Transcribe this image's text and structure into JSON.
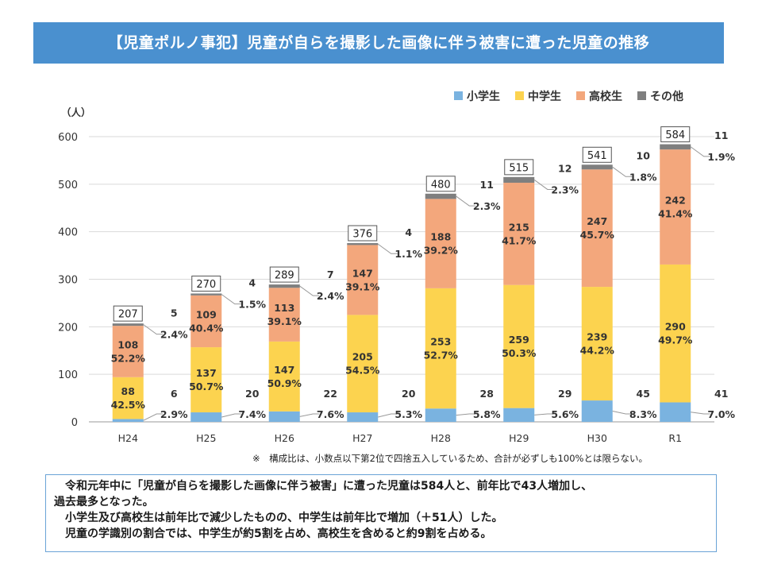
{
  "title": "【児童ポルノ事犯】児童が自らを撮影した画像に伴う被害に遭った児童の推移",
  "chart_data": {
    "type": "bar",
    "stacked": true,
    "unit_label": "（人）",
    "ylim": [
      0,
      600
    ],
    "yticks": [
      0,
      100,
      200,
      300,
      400,
      500,
      600
    ],
    "categories": [
      "H24",
      "H25",
      "H26",
      "H27",
      "H28",
      "H29",
      "H30",
      "R1"
    ],
    "totals": [
      207,
      270,
      289,
      376,
      480,
      515,
      541,
      584
    ],
    "legend_position": "top-right",
    "series": [
      {
        "name": "小学生",
        "color": "#7ab3e0",
        "values": [
          6,
          20,
          22,
          20,
          28,
          29,
          45,
          41
        ],
        "labels": [
          "6",
          "20",
          "22",
          "20",
          "28",
          "29",
          "45",
          "41"
        ],
        "pct": [
          "2.9%",
          "7.4%",
          "7.6%",
          "5.3%",
          "5.8%",
          "5.6%",
          "8.3%",
          "7.0%"
        ]
      },
      {
        "name": "中学生",
        "color": "#fcd34f",
        "values": [
          88,
          137,
          147,
          205,
          253,
          259,
          239,
          290
        ],
        "labels": [
          "88",
          "137",
          "147",
          "205",
          "253",
          "259",
          "239",
          "290"
        ],
        "pct": [
          "42.5%",
          "50.7%",
          "50.9%",
          "54.5%",
          "52.7%",
          "50.3%",
          "44.2%",
          "49.7%"
        ]
      },
      {
        "name": "高校生",
        "color": "#f3a77c",
        "values": [
          108,
          109,
          113,
          147,
          188,
          215,
          247,
          242
        ],
        "labels": [
          "108",
          "109",
          "113",
          "147",
          "188",
          "215",
          "247",
          "242"
        ],
        "pct": [
          "52.2%",
          "40.4%",
          "39.1%",
          "39.1%",
          "39.2%",
          "41.7%",
          "45.7%",
          "41.4%"
        ]
      },
      {
        "name": "その他",
        "color": "#7f7f7f",
        "values": [
          5,
          4,
          7,
          4,
          11,
          12,
          10,
          11
        ],
        "labels": [
          "5",
          "4",
          "7",
          "4",
          "11",
          "12",
          "10",
          "11"
        ],
        "pct": [
          "2.4%",
          "1.5%",
          "2.4%",
          "1.1%",
          "2.3%",
          "2.3%",
          "1.8%",
          "1.9%"
        ]
      }
    ]
  },
  "note": "※　構成比は、小数点以下第2位で四捨五入しているため、合計が必ずしも100%とは限らない。",
  "summary": [
    "令和元年中に「児童が自らを撮影した画像に伴う被害」に遭った児童は584人と、前年比で43人増加し、",
    "過去最多となった。",
    "小学生及び高校生は前年比で減少したものの、中学生は前年比で増加（＋51人）した。",
    "児童の学識別の割合では、中学生が約5割を占め、高校生を含めると約9割を占める。"
  ]
}
